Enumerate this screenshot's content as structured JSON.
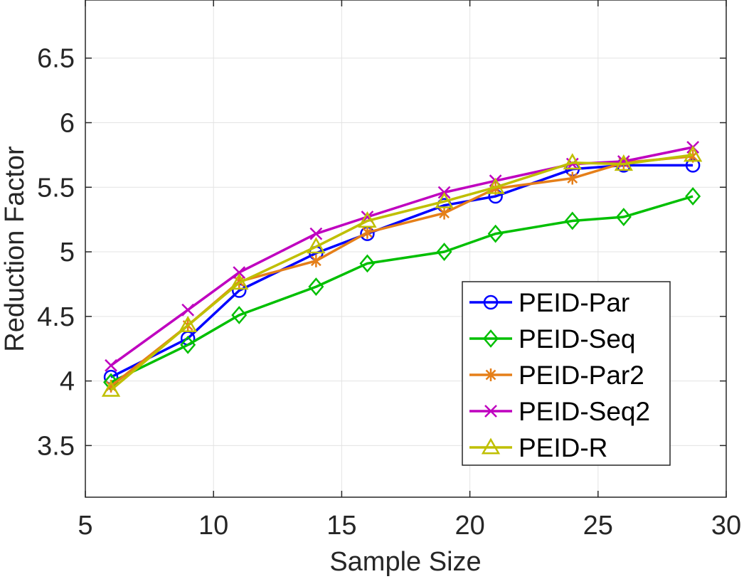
{
  "chart_data": {
    "type": "line",
    "title": "",
    "xlabel": "Sample Size",
    "ylabel": "Reduction Factor",
    "xlim": [
      5,
      30
    ],
    "ylim": [
      3.1,
      6.95
    ],
    "xticks": [
      5,
      10,
      15,
      20,
      25,
      30
    ],
    "yticks": [
      3.5,
      4,
      4.5,
      5,
      5.5,
      6,
      6.5
    ],
    "ytick_labels": [
      "3.5",
      "4",
      "4.5",
      "5",
      "5.5",
      "6",
      "6.5"
    ],
    "grid": true,
    "legend_position": "bottom-right",
    "x": [
      6,
      9,
      11,
      14,
      16,
      19,
      21,
      24,
      26,
      28.7
    ],
    "series": [
      {
        "name": "PEID-Par",
        "color": "#0000ff",
        "marker": "circle",
        "values": [
          4.03,
          4.33,
          4.7,
          4.99,
          5.14,
          5.36,
          5.43,
          5.64,
          5.67,
          5.67
        ]
      },
      {
        "name": "PEID-Seq",
        "color": "#00bf00",
        "marker": "diamond",
        "values": [
          3.99,
          4.28,
          4.51,
          4.73,
          4.91,
          5.0,
          5.14,
          5.24,
          5.27,
          5.43
        ]
      },
      {
        "name": "PEID-Par2",
        "color": "#e57f19",
        "marker": "asterisk",
        "values": [
          3.96,
          4.43,
          4.77,
          4.93,
          5.15,
          5.3,
          5.49,
          5.57,
          5.69,
          5.74
        ]
      },
      {
        "name": "PEID-Seq2",
        "color": "#bf00bf",
        "marker": "x",
        "values": [
          4.12,
          4.55,
          4.84,
          5.14,
          5.27,
          5.46,
          5.55,
          5.68,
          5.7,
          5.81
        ]
      },
      {
        "name": "PEID-R",
        "color": "#bfbf00",
        "marker": "triangle",
        "values": [
          3.93,
          4.43,
          4.76,
          5.04,
          5.24,
          5.39,
          5.5,
          5.69,
          5.68,
          5.75
        ]
      }
    ]
  }
}
